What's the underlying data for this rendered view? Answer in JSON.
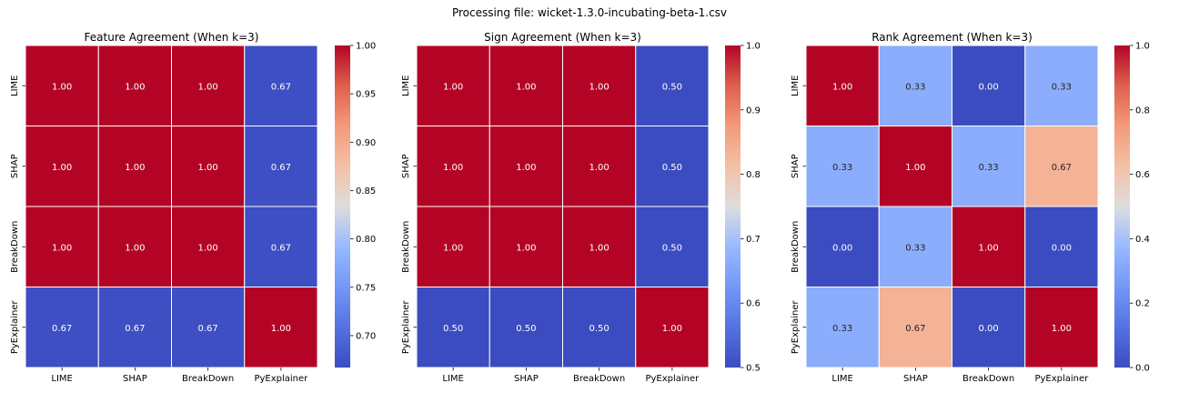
{
  "suptitle": "Processing file: wicket-1.3.0-incubating-beta-1.csv",
  "colormap": "coolwarm",
  "chart_data": [
    {
      "type": "heatmap",
      "title": "Feature Agreement (When k=3)",
      "rows": [
        "LIME",
        "SHAP",
        "BreakDown",
        "PyExplainer"
      ],
      "cols": [
        "LIME",
        "SHAP",
        "BreakDown",
        "PyExplainer"
      ],
      "values": [
        [
          1.0,
          1.0,
          1.0,
          0.67
        ],
        [
          1.0,
          1.0,
          1.0,
          0.67
        ],
        [
          1.0,
          1.0,
          1.0,
          0.67
        ],
        [
          0.67,
          0.67,
          0.67,
          1.0
        ]
      ],
      "cell_labels": [
        [
          "1.00",
          "1.00",
          "1.00",
          "0.67"
        ],
        [
          "1.00",
          "1.00",
          "1.00",
          "0.67"
        ],
        [
          "1.00",
          "1.00",
          "1.00",
          "0.67"
        ],
        [
          "0.67",
          "0.67",
          "0.67",
          "1.00"
        ]
      ],
      "colorbar": {
        "min": 0.667,
        "max": 1.0,
        "ticks": [
          "0.70",
          "0.75",
          "0.80",
          "0.85",
          "0.90",
          "0.95",
          "1.00"
        ]
      }
    },
    {
      "type": "heatmap",
      "title": "Sign Agreement (When k=3)",
      "rows": [
        "LIME",
        "SHAP",
        "BreakDown",
        "PyExplainer"
      ],
      "cols": [
        "LIME",
        "SHAP",
        "BreakDown",
        "PyExplainer"
      ],
      "values": [
        [
          1.0,
          1.0,
          1.0,
          0.5
        ],
        [
          1.0,
          1.0,
          1.0,
          0.5
        ],
        [
          1.0,
          1.0,
          1.0,
          0.5
        ],
        [
          0.5,
          0.5,
          0.5,
          1.0
        ]
      ],
      "cell_labels": [
        [
          "1.00",
          "1.00",
          "1.00",
          "0.50"
        ],
        [
          "1.00",
          "1.00",
          "1.00",
          "0.50"
        ],
        [
          "1.00",
          "1.00",
          "1.00",
          "0.50"
        ],
        [
          "0.50",
          "0.50",
          "0.50",
          "1.00"
        ]
      ],
      "colorbar": {
        "min": 0.5,
        "max": 1.0,
        "ticks": [
          "0.5",
          "0.6",
          "0.7",
          "0.8",
          "0.9",
          "1.0"
        ]
      }
    },
    {
      "type": "heatmap",
      "title": "Rank Agreement (When k=3)",
      "rows": [
        "LIME",
        "SHAP",
        "BreakDown",
        "PyExplainer"
      ],
      "cols": [
        "LIME",
        "SHAP",
        "BreakDown",
        "PyExplainer"
      ],
      "values": [
        [
          1.0,
          0.33,
          0.0,
          0.33
        ],
        [
          0.33,
          1.0,
          0.33,
          0.67
        ],
        [
          0.0,
          0.33,
          1.0,
          0.0
        ],
        [
          0.33,
          0.67,
          0.0,
          1.0
        ]
      ],
      "cell_labels": [
        [
          "1.00",
          "0.33",
          "0.00",
          "0.33"
        ],
        [
          "0.33",
          "1.00",
          "0.33",
          "0.67"
        ],
        [
          "0.00",
          "0.33",
          "1.00",
          "0.00"
        ],
        [
          "0.33",
          "0.67",
          "0.00",
          "1.00"
        ]
      ],
      "colorbar": {
        "min": 0.0,
        "max": 1.0,
        "ticks": [
          "0.0",
          "0.2",
          "0.4",
          "0.6",
          "0.8",
          "1.0"
        ]
      }
    }
  ]
}
